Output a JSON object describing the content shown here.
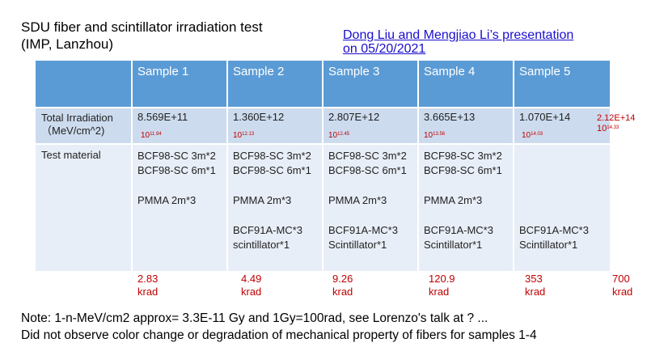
{
  "title_lines": [
    "SDU fiber and scintillator irradiation test",
    "(IMP, Lanzhou)"
  ],
  "reference_link_lines": [
    "Dong Liu and Mengjiao Li’s presentation ",
    "on 05/20/2021"
  ],
  "table": {
    "headers": [
      "Sample 1",
      "Sample 2",
      "Sample 3",
      "Sample 4",
      "Sample 5"
    ],
    "row_labels": {
      "irradiation": [
        "Total Irradiation",
        "（MeV/cm^2)"
      ],
      "material": "Test material"
    },
    "irradiation_values": [
      "8.569E+11",
      "1.360E+12",
      "2.807E+12",
      "3.665E+13",
      "1.070E+14"
    ],
    "exponent_notes": [
      {
        "base": "10",
        "exp": "11.94"
      },
      {
        "base": "10",
        "exp": "12.13"
      },
      {
        "base": "10",
        "exp": "12.45"
      },
      {
        "base": "10",
        "exp": "13.56"
      },
      {
        "base": "10",
        "exp": "14.03"
      }
    ],
    "materials": {
      "s1": [
        "BCF98-SC 3m*2",
        "BCF98-SC 6m*1",
        "PMMA 2m*3"
      ],
      "s2": [
        "BCF98-SC 3m*2",
        "BCF98-SC 6m*1",
        "PMMA 2m*3",
        "BCF91A-MC*3",
        "scintillator*1"
      ],
      "s3": [
        "BCF98-SC 3m*2",
        "BCF98-SC 6m*1",
        "PMMA 2m*3",
        "BCF91A-MC*3",
        "Scintillator*1"
      ],
      "s4": [
        "BCF98-SC 3m*2",
        "BCF98-SC 6m*1",
        "PMMA 2m*3",
        "BCF91A-MC*3",
        "Scintillator*1"
      ],
      "s5": [
        "BCF91A-MC*3",
        "Scintillator*1"
      ]
    }
  },
  "extra_irradiation": {
    "value": "2.12E+14",
    "base": "10",
    "exp": "14.33"
  },
  "doses": [
    {
      "value": "2.83",
      "unit": "krad"
    },
    {
      "value": "4.49",
      "unit": "krad"
    },
    {
      "value": "9.26",
      "unit": "krad"
    },
    {
      "value": "120.9",
      "unit": "krad"
    },
    {
      "value": "353",
      "unit": "krad"
    },
    {
      "value": "700",
      "unit": "krad"
    }
  ],
  "notes": [
    "Note: 1-n-MeV/cm2 approx= 3.3E-11 Gy and 1Gy=100rad, see Lorenzo's talk at ? ...",
    "Did not observe color change or degradation of mechanical property of fibers for samples 1-4"
  ],
  "colors": {
    "header": "#5b9bd5",
    "row_dark": "#cddbee",
    "row_light": "#e8eef7",
    "annotation": "#c00000",
    "link": "#1a0dcc"
  }
}
